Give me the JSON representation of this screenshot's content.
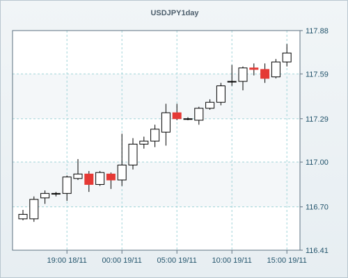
{
  "chart_data": {
    "type": "candlestick",
    "title": "USDJPY1day",
    "xlabel": "",
    "ylabel": "",
    "ylim": [
      116.41,
      117.88
    ],
    "y_ticks": [
      116.41,
      116.7,
      117.0,
      117.29,
      117.59,
      117.88
    ],
    "y_tick_labels": [
      "116.41",
      "116.70",
      "117.00",
      "117.29",
      "117.59",
      "117.88"
    ],
    "x_tick_labels": [
      "19:00 18/11",
      "00:00 19/11",
      "05:00 19/11",
      "10:00 19/11",
      "15:00 19/11"
    ],
    "x_tick_candle_index": [
      4,
      9,
      14,
      19,
      24
    ],
    "grid": true,
    "legend": "none",
    "colors": {
      "up": "#ffffff",
      "down": "#e53935",
      "wick": "#000000",
      "grid": "#9fd3d8",
      "axis": "#5c7080"
    },
    "series": [
      {
        "candles": [
          {
            "open": 116.62,
            "high": 116.68,
            "low": 116.61,
            "close": 116.65
          },
          {
            "open": 116.62,
            "high": 116.77,
            "low": 116.6,
            "close": 116.75
          },
          {
            "open": 116.76,
            "high": 116.81,
            "low": 116.72,
            "close": 116.79
          },
          {
            "open": 116.79,
            "high": 116.8,
            "low": 116.77,
            "close": 116.79
          },
          {
            "open": 116.79,
            "high": 116.91,
            "low": 116.74,
            "close": 116.9
          },
          {
            "open": 116.89,
            "high": 117.02,
            "low": 116.88,
            "close": 116.92
          },
          {
            "open": 116.92,
            "high": 116.94,
            "low": 116.8,
            "close": 116.85
          },
          {
            "open": 116.85,
            "high": 116.94,
            "low": 116.84,
            "close": 116.93
          },
          {
            "open": 116.92,
            "high": 116.93,
            "low": 116.82,
            "close": 116.88
          },
          {
            "open": 116.88,
            "high": 117.19,
            "low": 116.84,
            "close": 116.98
          },
          {
            "open": 116.98,
            "high": 117.16,
            "low": 116.95,
            "close": 117.12
          },
          {
            "open": 117.12,
            "high": 117.17,
            "low": 117.09,
            "close": 117.14
          },
          {
            "open": 117.14,
            "high": 117.25,
            "low": 117.1,
            "close": 117.22
          },
          {
            "open": 117.2,
            "high": 117.39,
            "low": 117.11,
            "close": 117.33
          },
          {
            "open": 117.33,
            "high": 117.39,
            "low": 117.28,
            "close": 117.29
          },
          {
            "open": 117.29,
            "high": 117.3,
            "low": 117.28,
            "close": 117.29
          },
          {
            "open": 117.28,
            "high": 117.37,
            "low": 117.25,
            "close": 117.36
          },
          {
            "open": 117.36,
            "high": 117.42,
            "low": 117.35,
            "close": 117.4
          },
          {
            "open": 117.4,
            "high": 117.53,
            "low": 117.38,
            "close": 117.51
          },
          {
            "open": 117.54,
            "high": 117.65,
            "low": 117.51,
            "close": 117.54
          },
          {
            "open": 117.54,
            "high": 117.64,
            "low": 117.48,
            "close": 117.63
          },
          {
            "open": 117.63,
            "high": 117.66,
            "low": 117.58,
            "close": 117.62
          },
          {
            "open": 117.62,
            "high": 117.66,
            "low": 117.53,
            "close": 117.56
          },
          {
            "open": 117.57,
            "high": 117.69,
            "low": 117.56,
            "close": 117.67
          },
          {
            "open": 117.67,
            "high": 117.79,
            "low": 117.64,
            "close": 117.73
          }
        ]
      }
    ]
  }
}
